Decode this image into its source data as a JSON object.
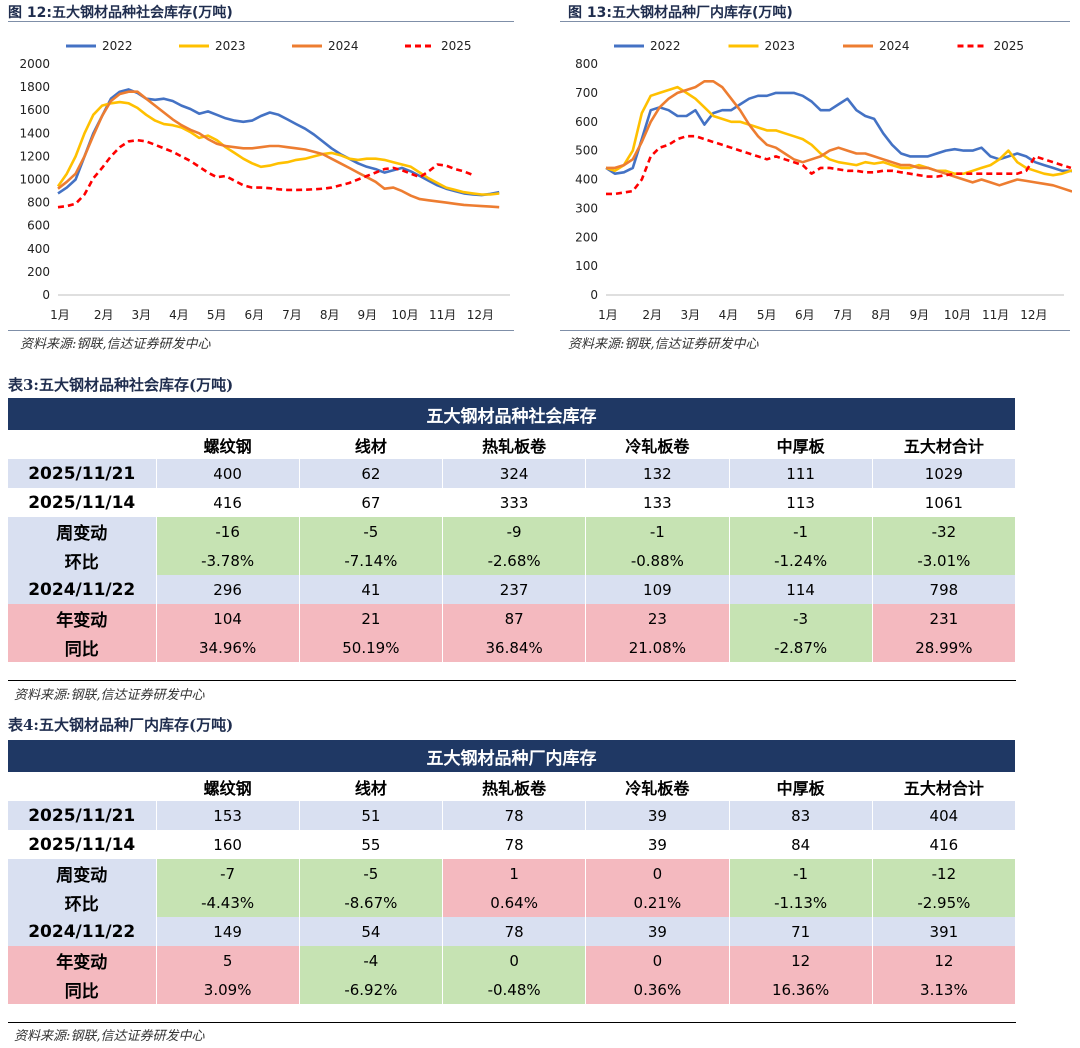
{
  "figures": [
    {
      "title": "图 12:五大钢材品种社会库存(万吨)",
      "source": "资料来源:钢联,信达证券研发中心",
      "chart_data": {
        "type": "line",
        "title": "五大钢材品种社会库存(万吨)",
        "x_labels": [
          "1月",
          "2月",
          "3月",
          "4月",
          "5月",
          "6月",
          "7月",
          "8月",
          "9月",
          "10月",
          "11月",
          "12月"
        ],
        "ylim": [
          0,
          2000
        ],
        "yticks": [
          0,
          200,
          400,
          600,
          800,
          1000,
          1200,
          1400,
          1600,
          1800,
          2000
        ],
        "legend_position": "top",
        "series": [
          {
            "name": "2022",
            "color": "#4472c4",
            "dash": false,
            "values": [
              880,
              930,
              1000,
              1200,
              1400,
              1550,
              1700,
              1760,
              1780,
              1750,
              1700,
              1690,
              1700,
              1680,
              1640,
              1610,
              1570,
              1590,
              1560,
              1530,
              1510,
              1500,
              1510,
              1550,
              1580,
              1560,
              1520,
              1480,
              1440,
              1390,
              1330,
              1270,
              1220,
              1180,
              1140,
              1110,
              1090,
              1060,
              1080,
              1100,
              1070,
              1030,
              990,
              950,
              920,
              900,
              880,
              870,
              865,
              875,
              890
            ]
          },
          {
            "name": "2023",
            "color": "#ffc000",
            "dash": false,
            "values": [
              940,
              1050,
              1200,
              1400,
              1560,
              1640,
              1660,
              1670,
              1660,
              1620,
              1560,
              1510,
              1480,
              1470,
              1450,
              1410,
              1360,
              1380,
              1340,
              1280,
              1230,
              1180,
              1140,
              1110,
              1120,
              1140,
              1150,
              1170,
              1180,
              1200,
              1220,
              1230,
              1210,
              1180,
              1170,
              1180,
              1180,
              1170,
              1150,
              1130,
              1110,
              1060,
              1010,
              970,
              930,
              910,
              890,
              880,
              870,
              870,
              880
            ]
          },
          {
            "name": "2024",
            "color": "#ed7d31",
            "dash": false,
            "values": [
              920,
              980,
              1050,
              1200,
              1380,
              1550,
              1680,
              1740,
              1760,
              1760,
              1700,
              1640,
              1580,
              1520,
              1470,
              1430,
              1400,
              1350,
              1310,
              1290,
              1280,
              1270,
              1270,
              1280,
              1290,
              1290,
              1280,
              1270,
              1260,
              1240,
              1220,
              1180,
              1140,
              1100,
              1060,
              1020,
              980,
              920,
              930,
              900,
              860,
              830,
              820,
              810,
              800,
              790,
              780,
              775,
              770,
              765,
              760
            ]
          },
          {
            "name": "2025",
            "color": "#ff0000",
            "dash": true,
            "values": [
              760,
              770,
              790,
              870,
              1010,
              1100,
              1200,
              1280,
              1330,
              1340,
              1330,
              1300,
              1270,
              1240,
              1200,
              1160,
              1110,
              1060,
              1020,
              1030,
              990,
              950,
              930,
              930,
              925,
              915,
              910,
              910,
              912,
              915,
              920,
              930,
              950,
              970,
              1000,
              1030,
              1060,
              1090,
              1100,
              1080,
              1050,
              1020,
              1070,
              1130,
              1120,
              1090,
              1070,
              1040
            ]
          }
        ]
      }
    },
    {
      "title": "图 13:五大钢材品种厂内库存(万吨)",
      "source": "资料来源:钢联,信达证券研发中心",
      "chart_data": {
        "type": "line",
        "title": "五大钢材品种厂内库存(万吨)",
        "x_labels": [
          "1月",
          "2月",
          "3月",
          "4月",
          "5月",
          "6月",
          "7月",
          "8月",
          "9月",
          "10月",
          "11月",
          "12月"
        ],
        "ylim": [
          0,
          800
        ],
        "yticks": [
          0,
          100,
          200,
          300,
          400,
          500,
          600,
          700,
          800
        ],
        "legend_position": "top",
        "series": [
          {
            "name": "2022",
            "color": "#4472c4",
            "dash": false,
            "values": [
              440,
              420,
              425,
              440,
              540,
              640,
              650,
              640,
              620,
              620,
              640,
              590,
              630,
              640,
              640,
              660,
              680,
              690,
              690,
              700,
              700,
              700,
              690,
              670,
              640,
              640,
              660,
              680,
              640,
              620,
              610,
              560,
              520,
              490,
              480,
              480,
              480,
              490,
              500,
              505,
              500,
              500,
              510,
              480,
              470,
              480,
              490,
              480,
              460,
              450,
              440,
              430,
              430,
              420,
              430,
              430,
              440
            ]
          },
          {
            "name": "2023",
            "color": "#ffc000",
            "dash": false,
            "values": [
              440,
              430,
              450,
              500,
              630,
              690,
              700,
              710,
              720,
              700,
              680,
              650,
              620,
              610,
              600,
              600,
              590,
              580,
              570,
              570,
              560,
              550,
              540,
              520,
              490,
              470,
              460,
              455,
              450,
              460,
              455,
              460,
              450,
              440,
              440,
              450,
              440,
              430,
              430,
              420,
              420,
              430,
              440,
              450,
              470,
              500,
              460,
              440,
              430,
              420,
              415,
              420,
              430,
              440,
              450,
              460,
              455
            ]
          },
          {
            "name": "2024",
            "color": "#ed7d31",
            "dash": false,
            "values": [
              440,
              440,
              450,
              470,
              530,
              600,
              650,
              680,
              700,
              710,
              720,
              740,
              740,
              720,
              680,
              640,
              590,
              550,
              520,
              510,
              490,
              470,
              460,
              470,
              480,
              500,
              510,
              500,
              490,
              490,
              480,
              470,
              460,
              450,
              450,
              440,
              440,
              430,
              420,
              410,
              400,
              390,
              400,
              390,
              380,
              390,
              400,
              395,
              390,
              385,
              380,
              370,
              360,
              355,
              350,
              350,
              350
            ]
          },
          {
            "name": "2025",
            "color": "#ff0000",
            "dash": true,
            "values": [
              350,
              350,
              355,
              360,
              400,
              480,
              510,
              520,
              540,
              550,
              550,
              540,
              530,
              520,
              510,
              500,
              490,
              480,
              470,
              480,
              470,
              460,
              450,
              420,
              440,
              440,
              435,
              430,
              430,
              425,
              425,
              430,
              430,
              425,
              420,
              415,
              410,
              410,
              415,
              420,
              420,
              420,
              420,
              420,
              420,
              420,
              420,
              430,
              480,
              470,
              460,
              450,
              440
            ]
          }
        ]
      }
    }
  ],
  "tables": [
    {
      "caption": "表3:五大钢材品种社会库存(万吨)",
      "header": "五大钢材品种社会库存",
      "columns": [
        "螺纹钢",
        "线材",
        "热轧板卷",
        "冷轧板卷",
        "中厚板",
        "五大材合计"
      ],
      "rows": [
        {
          "label": "2025/11/21",
          "values": [
            "400",
            "62",
            "324",
            "132",
            "111",
            "1029"
          ]
        },
        {
          "label": "2025/11/14",
          "values": [
            "416",
            "67",
            "333",
            "133",
            "113",
            "1061"
          ]
        },
        {
          "label": "周变动",
          "values": [
            "-16",
            "-5",
            "-9",
            "-1",
            "-1",
            "-32"
          ]
        },
        {
          "label": "环比",
          "values": [
            "-3.78%",
            "-7.14%",
            "-2.68%",
            "-0.88%",
            "-1.24%",
            "-3.01%"
          ]
        },
        {
          "label": "2024/11/22",
          "values": [
            "296",
            "41",
            "237",
            "109",
            "114",
            "798"
          ]
        },
        {
          "label": "年变动",
          "values": [
            "104",
            "21",
            "87",
            "23",
            "-3",
            "231"
          ]
        },
        {
          "label": "同比",
          "values": [
            "34.96%",
            "50.19%",
            "36.84%",
            "21.08%",
            "-2.87%",
            "28.99%"
          ]
        }
      ],
      "source": "资料来源:钢联,信达证券研发中心"
    },
    {
      "caption": "表4:五大钢材品种厂内库存(万吨)",
      "header": "五大钢材品种厂内库存",
      "columns": [
        "螺纹钢",
        "线材",
        "热轧板卷",
        "冷轧板卷",
        "中厚板",
        "五大材合计"
      ],
      "rows": [
        {
          "label": "2025/11/21",
          "values": [
            "153",
            "51",
            "78",
            "39",
            "83",
            "404"
          ]
        },
        {
          "label": "2025/11/14",
          "values": [
            "160",
            "55",
            "78",
            "39",
            "84",
            "416"
          ]
        },
        {
          "label": "周变动",
          "values": [
            "-7",
            "-5",
            "1",
            "0",
            "-1",
            "-12"
          ]
        },
        {
          "label": "环比",
          "values": [
            "-4.43%",
            "-8.67%",
            "0.64%",
            "0.21%",
            "-1.13%",
            "-2.95%"
          ]
        },
        {
          "label": "2024/11/22",
          "values": [
            "149",
            "54",
            "78",
            "39",
            "71",
            "391"
          ]
        },
        {
          "label": "年变动",
          "values": [
            "5",
            "-4",
            "0",
            "0",
            "12",
            "12"
          ]
        },
        {
          "label": "同比",
          "values": [
            "3.09%",
            "-6.92%",
            "-0.48%",
            "0.36%",
            "16.36%",
            "3.13%"
          ]
        }
      ],
      "source": "资料来源:钢联,信达证券研发中心"
    }
  ]
}
